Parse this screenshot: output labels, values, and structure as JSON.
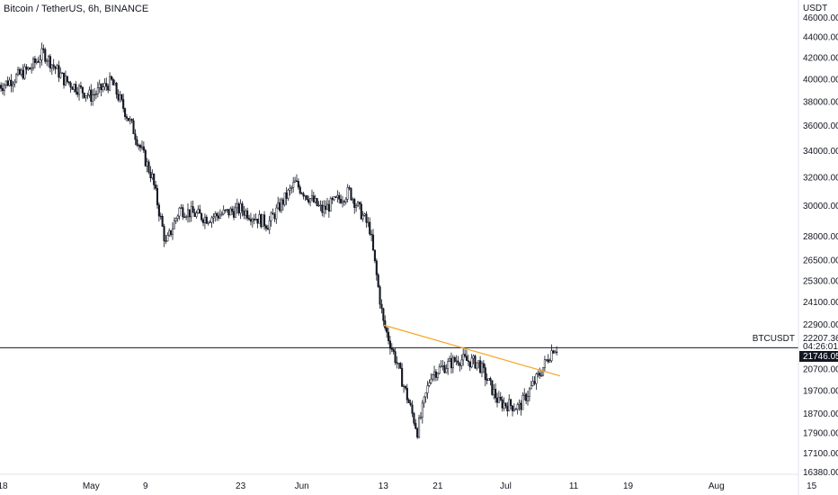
{
  "header": {
    "title": "Bitcoin / TetherUS, 6h, BINANCE"
  },
  "price_axis": {
    "currency": "USDT"
  },
  "last_price": {
    "symbol": "BTCUSDT",
    "value": "21746.05",
    "secondary": "22207.36",
    "countdown": "04:26:01"
  },
  "chart_data": {
    "type": "candlestick",
    "symbol": "BTCUSDT",
    "exchange": "BINANCE",
    "timeframe": "6h",
    "log_scale": true,
    "ylim": [
      16380,
      46000
    ],
    "price_ticks": [
      "46000.00",
      "44000.00",
      "42000.00",
      "40000.00",
      "38000.00",
      "36000.00",
      "34000.00",
      "32000.00",
      "30000.00",
      "28000.00",
      "26500.00",
      "25300.00",
      "24100.00",
      "22900.00",
      "20700.00",
      "19700.00",
      "18700.00",
      "17900.00",
      "17100.00",
      "16380.00"
    ],
    "time_ticks": [
      "18",
      "May",
      "9",
      "23",
      "Jun",
      "13",
      "21",
      "Jul",
      "11",
      "19",
      "Aug",
      "15",
      "23"
    ],
    "approx_closes": [
      {
        "date": "Apr 18",
        "close": 39500
      },
      {
        "date": "Apr 22",
        "close": 41000
      },
      {
        "date": "Apr 24",
        "close": 42500
      },
      {
        "date": "Apr 27",
        "close": 40000
      },
      {
        "date": "May 1",
        "close": 38500
      },
      {
        "date": "May 4",
        "close": 39800
      },
      {
        "date": "May 7",
        "close": 36000
      },
      {
        "date": "May 10",
        "close": 32000
      },
      {
        "date": "May 12",
        "close": 27500
      },
      {
        "date": "May 14",
        "close": 29800
      },
      {
        "date": "May 18",
        "close": 29200
      },
      {
        "date": "May 23",
        "close": 29800
      },
      {
        "date": "May 27",
        "close": 28800
      },
      {
        "date": "May 31",
        "close": 31600
      },
      {
        "date": "Jun 4",
        "close": 29700
      },
      {
        "date": "Jun 8",
        "close": 31000
      },
      {
        "date": "Jun 11",
        "close": 28500
      },
      {
        "date": "Jun 13",
        "close": 23000
      },
      {
        "date": "Jun 15",
        "close": 21000
      },
      {
        "date": "Jun 18",
        "close": 18000
      },
      {
        "date": "Jun 20",
        "close": 20500
      },
      {
        "date": "Jun 24",
        "close": 21200
      },
      {
        "date": "Jun 27",
        "close": 21000
      },
      {
        "date": "Jun 30",
        "close": 19200
      },
      {
        "date": "Jul 3",
        "close": 19000
      },
      {
        "date": "Jul 6",
        "close": 20500
      },
      {
        "date": "Jul 8",
        "close": 21746
      }
    ],
    "trendline": {
      "color": "#f5a623",
      "from": {
        "date": "Jun 13",
        "price": 22900
      },
      "to": {
        "date": "Jul 9",
        "price": 20400
      }
    },
    "horizontal_line": {
      "price": 21746.05,
      "color": "#131722"
    }
  }
}
